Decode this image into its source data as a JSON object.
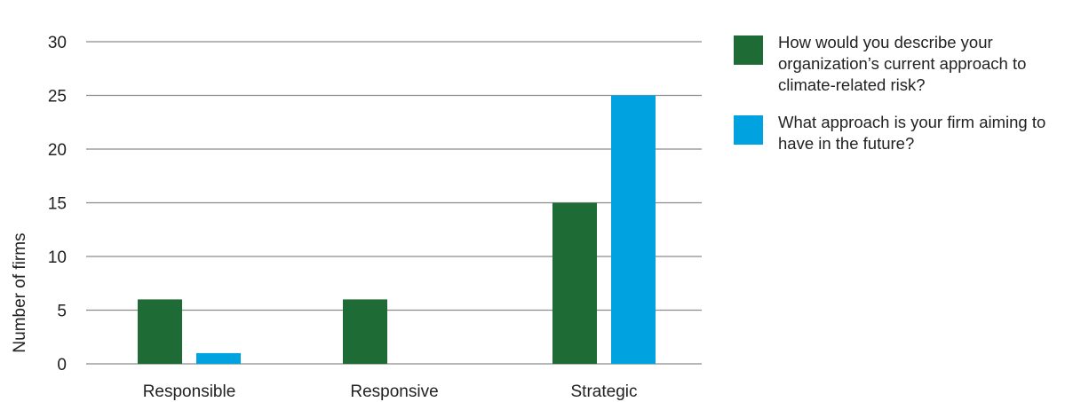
{
  "chart_data": {
    "type": "bar",
    "categories": [
      "Responsible",
      "Responsive",
      "Strategic"
    ],
    "series": [
      {
        "name": "How would you describe your organization’s current approach to climate-related risk?",
        "values": [
          6,
          6,
          15
        ],
        "color": "#1e6b35"
      },
      {
        "name": "What approach is your firm aiming to have in the future?",
        "values": [
          1,
          0,
          25
        ],
        "color": "#00a3e0"
      }
    ],
    "xlabel": "",
    "ylabel": "Number of firms",
    "ylim": [
      0,
      30
    ],
    "yticks": [
      0,
      5,
      10,
      15,
      20,
      25,
      30
    ],
    "grid": true,
    "legend_position": "right"
  }
}
